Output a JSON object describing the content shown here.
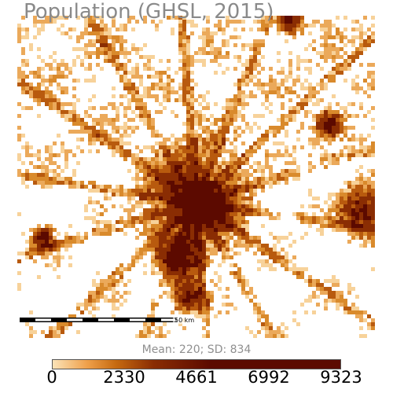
{
  "map": {
    "title": "Population (GHSL, 2015)",
    "scale_label": "50 km",
    "stats": "Mean: 220; SD: 834"
  },
  "legend": {
    "ticks": [
      "0",
      "2330",
      "4661",
      "6992",
      "9323"
    ],
    "colors": [
      "#fbe3b8",
      "#efa04a",
      "#c66a10",
      "#8a2d03",
      "#5c0a00"
    ]
  },
  "colors": {
    "title": "#8a8a8a",
    "low": "#f7c98a",
    "mid": "#d47a1c",
    "high": "#5c0a00"
  }
}
